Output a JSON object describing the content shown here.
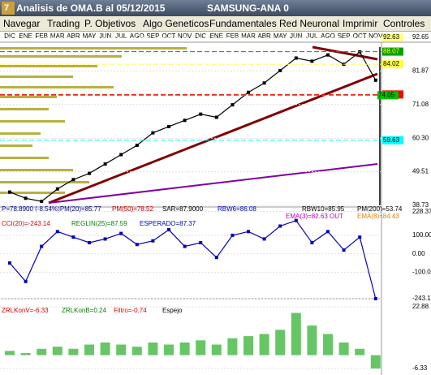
{
  "window": {
    "title": "Analisis de OMA.B al 05/12/2015",
    "subtitle": "SAMSUNG-ANA 0"
  },
  "menu": [
    "Navegar",
    "Trading",
    "P. Objetivos",
    "Algo Geneticos",
    "Fundamentales",
    "Red Neuronal",
    "Imprimir",
    "Controles"
  ],
  "chart_data": [
    {
      "type": "line",
      "color": "#000000",
      "categories": [
        "DIC",
        "ENE",
        "FEB",
        "MAR",
        "ABR",
        "MAY",
        "JUN",
        "JUL",
        "AGO",
        "SEP",
        "OCT",
        "NOV",
        "DIC",
        "ENE",
        "FEB",
        "MAR",
        "ABR",
        "MAY",
        "JUN",
        "JUL",
        "AGO",
        "SEP",
        "OCT",
        "NOV"
      ],
      "values": [
        43,
        41,
        40,
        44,
        47,
        49,
        52,
        55,
        58,
        62,
        64,
        66,
        68,
        67,
        71,
        75,
        78,
        82,
        86,
        85,
        87,
        84,
        88,
        78.89
      ],
      "ylim": [
        38.73,
        92.65
      ],
      "yticks": [
        92.65,
        81.87,
        71.08,
        {
          "value": 60.3,
          "label": "60.30"
        },
        49.51,
        38.73
      ],
      "markers": [
        {
          "value": 92.63,
          "color": "#ffff80"
        },
        {
          "value": 88.07,
          "color": "#00a000"
        },
        {
          "value": 84.02,
          "color": "#ffff40"
        },
        {
          "value": 74.32,
          "color": "#ff0000"
        },
        {
          "value": 74.05,
          "color": "#00c000"
        },
        {
          "value": 59.63,
          "color": "#00ffff"
        }
      ],
      "info": [
        {
          "text": "P=78.8900 (-8.54%)PM(20)=85.77",
          "color": "#000080"
        },
        {
          "text": "PM(50)=78.52",
          "color": "#c00000"
        },
        {
          "text": "SAR=87.9000",
          "color": "#000000"
        },
        {
          "text": "RBW6=86.08",
          "color": "#0000c0"
        },
        {
          "text": "RBW10=85.95",
          "color": "#000000"
        },
        {
          "text": "PM(200)=53.74",
          "color": "#000000"
        },
        {
          "text": "EMA(3)=82.63 OUT",
          "color": "#c000c0"
        },
        {
          "text": "EMA(8)=84.43",
          "color": "#e08000"
        }
      ]
    },
    {
      "type": "line",
      "color": "#0000c0",
      "values": [
        -50,
        -150,
        40,
        120,
        90,
        60,
        80,
        110,
        50,
        70,
        130,
        40,
        60,
        -20,
        100,
        120,
        80,
        150,
        180,
        60,
        120,
        20,
        90,
        -243.14
      ],
      "ylim": [
        -243.14,
        240
      ],
      "yticks": [
        228.37,
        {
          "value": 100,
          "label": "100.00"
        },
        {
          "value": 0,
          "label": "0.00"
        },
        {
          "value": -100,
          "label": "-100.00"
        },
        -243.14
      ],
      "info": [
        {
          "text": "CCI(20)=-243.14",
          "color": "#e00000"
        },
        {
          "text": "REGLIN(25)=87.59",
          "color": "#008000"
        },
        {
          "text": "ESPERADO=87.37",
          "color": "#0000c0"
        }
      ]
    },
    {
      "type": "bar",
      "color": "#00a000",
      "values": [
        2,
        1,
        3,
        4,
        3,
        5,
        6,
        5,
        4,
        6,
        5,
        6,
        7,
        5,
        8,
        9,
        10,
        12,
        20,
        14,
        10,
        6,
        3,
        -6.33
      ],
      "ylim": [
        -6.33,
        22.88
      ],
      "yticks": [
        22.88,
        -6.33
      ],
      "info": [
        {
          "text": "ZRLKonV=-6.33",
          "color": "#e00000"
        },
        {
          "text": "ZRLKonB=0.24",
          "color": "#008000"
        },
        {
          "text": "Filtro=-0.74",
          "color": "#e00000"
        },
        {
          "text": "Espejo",
          "color": "#000000"
        }
      ]
    }
  ]
}
